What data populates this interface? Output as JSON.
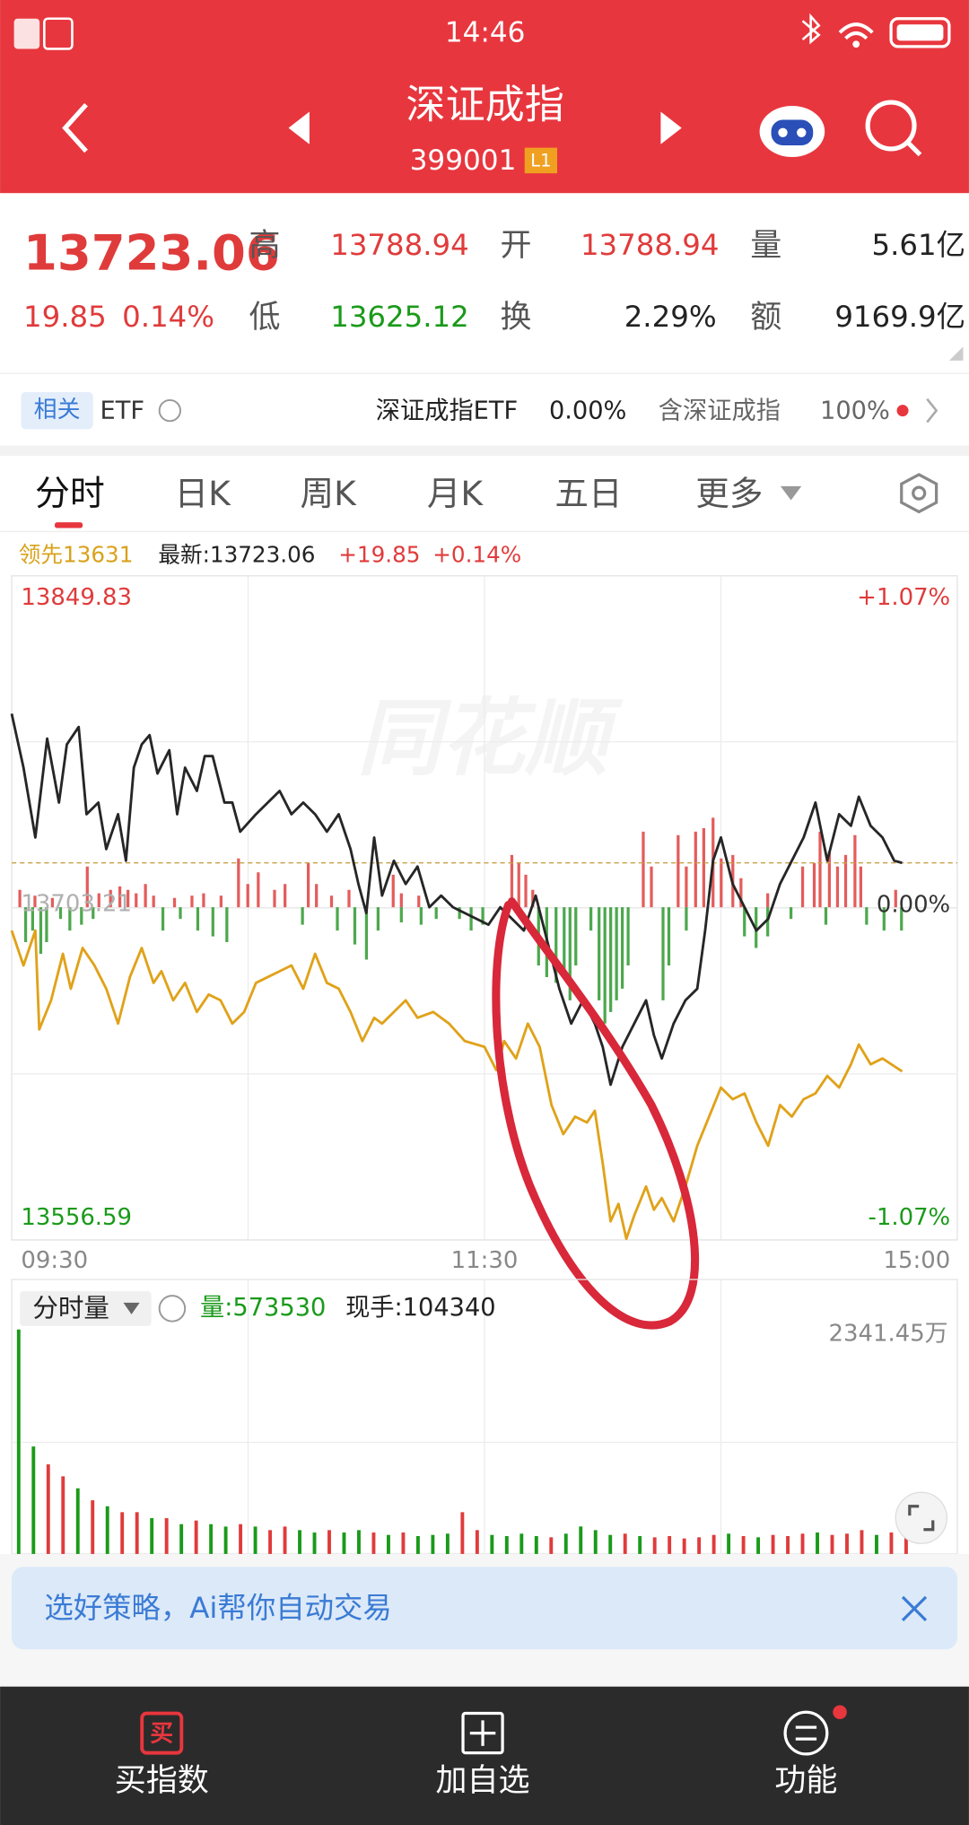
{
  "status": {
    "time": "14:46"
  },
  "nav": {
    "title": "深证成指",
    "code": "399001",
    "badge": "L1"
  },
  "quote": {
    "price": "13723.06",
    "change": "19.85",
    "pct": "0.14%",
    "high_label": "高",
    "high": "13788.94",
    "open_label": "开",
    "open": "13788.94",
    "volume_label": "量",
    "volume": "5.61亿",
    "low_label": "低",
    "low": "13625.12",
    "turnover_label": "换",
    "turnover": "2.29%",
    "amount_label": "额",
    "amount": "9169.9亿"
  },
  "related": {
    "tag": "相关",
    "etf": "ETF",
    "name": "深证成指ETF",
    "pct": "0.00%",
    "contain": "含深证成指",
    "contain_pct": "100%"
  },
  "tabs": [
    "分时",
    "日K",
    "周K",
    "月K",
    "五日",
    "更多"
  ],
  "info": {
    "lead": "领先13631",
    "latest": "最新:13723.06",
    "change": "+19.85",
    "pct": "+0.14%"
  },
  "chart_data": [
    {
      "type": "line",
      "watermark": "同花顺",
      "xlim": [
        0,
        240
      ],
      "xticks": [
        {
          "value": 0,
          "label": "09:30"
        },
        {
          "value": 120,
          "label": "11:30"
        },
        {
          "value": 240,
          "label": "15:00"
        }
      ],
      "xgrid": [
        60,
        120,
        180
      ],
      "ylim": [
        13556.59,
        13849.83
      ],
      "yticks": [
        13556.59,
        13703.21,
        13849.83
      ],
      "ytick_colors": [
        "#1a9a1a",
        "#b0b0b0",
        "#e03b3b"
      ],
      "ygrid": [
        13629.9,
        13776.52
      ],
      "y2lim": [
        -1.07,
        1.07
      ],
      "y2ticks": [
        {
          "value": -1.07,
          "label": "-1.07%"
        },
        {
          "value": 0,
          "label": "0.00%"
        },
        {
          "value": 1.07,
          "label": "+1.07%"
        }
      ],
      "y2tick_colors": [
        "#1a9a1a",
        "#333333",
        "#e03b3b"
      ],
      "grid": true,
      "last_price": 13723.06,
      "series": [
        {
          "color": "#262626",
          "x": [
            0,
            3,
            6,
            9,
            12,
            14,
            17,
            19,
            22,
            24,
            27,
            29,
            31,
            33,
            35,
            37,
            40,
            42,
            44,
            47,
            49,
            51,
            54,
            56,
            58,
            62,
            65,
            68,
            71,
            74,
            77,
            80,
            83,
            86,
            88,
            90,
            92,
            94,
            97,
            100,
            103,
            106,
            109,
            112,
            115,
            118,
            121,
            124,
            127,
            130,
            133,
            136,
            139,
            142,
            145,
            148,
            150,
            152,
            155,
            158,
            161,
            163,
            165,
            168,
            171,
            174,
            176,
            178,
            180,
            183,
            186,
            189,
            192,
            195,
            198,
            201,
            204,
            207,
            210,
            213,
            215,
            218,
            221,
            224,
            226
          ],
          "values": [
            13788.94,
            13765.1,
            13734.28,
            13777.94,
            13749.69,
            13775.37,
            13783.07,
            13744.55,
            13749.69,
            13729.15,
            13744.55,
            13724.01,
            13765.1,
            13775.37,
            13779.48,
            13762.53,
            13772.8,
            13744.55,
            13765.1,
            13754.83,
            13770.23,
            13770.23,
            13749.69,
            13749.69,
            13736.85,
            13744.55,
            13749.69,
            13754.83,
            13744.55,
            13749.69,
            13744.55,
            13736.85,
            13744.55,
            13729.15,
            13713.74,
            13700.9,
            13734.28,
            13708.6,
            13724.01,
            13713.74,
            13721.44,
            13703.47,
            13708.6,
            13703.47,
            13700.9,
            13698.33,
            13695.76,
            13703.47,
            13698.33,
            13693.19,
            13708.6,
            13688.06,
            13667.51,
            13652.11,
            13662.38,
            13652.11,
            13641.83,
            13625.12,
            13641.83,
            13652.11,
            13662.38,
            13646.97,
            13636.7,
            13652.11,
            13662.38,
            13667.51,
            13693.19,
            13724.01,
            13734.28,
            13713.74,
            13703.47,
            13693.19,
            13698.33,
            13713.74,
            13724.01,
            13734.28,
            13749.69,
            13724.01,
            13744.55,
            13739.42,
            13752.26,
            13739.42,
            13734.28,
            13724.01,
            13723.06
          ]
        },
        {
          "color": "#e0a21a",
          "x": [
            0,
            3,
            6,
            7,
            10,
            13,
            15,
            18,
            21,
            24,
            27,
            30,
            33,
            36,
            38,
            41,
            44,
            47,
            50,
            53,
            56,
            59,
            62,
            65,
            68,
            71,
            74,
            77,
            80,
            83,
            86,
            89,
            92,
            94,
            97,
            100,
            103,
            107,
            111,
            115,
            120,
            123,
            125,
            128,
            131,
            134,
            137,
            140,
            143,
            146,
            148,
            150,
            152,
            154,
            156,
            158,
            161,
            163,
            165,
            168,
            171,
            174,
            177,
            180,
            183,
            186,
            189,
            192,
            195,
            198,
            201,
            204,
            207,
            210,
            213,
            215,
            218,
            221,
            226
          ],
          "values": [
            13693.19,
            13677.79,
            13693.19,
            13649.54,
            13662.38,
            13682.92,
            13667.51,
            13685.49,
            13677.79,
            13667.51,
            13652.11,
            13672.65,
            13685.49,
            13670.08,
            13675.22,
            13662.38,
            13670.08,
            13657.24,
            13664.95,
            13662.38,
            13652.11,
            13657.24,
            13670.08,
            13672.65,
            13675.22,
            13677.79,
            13667.51,
            13682.92,
            13670.08,
            13667.51,
            13657.24,
            13644.4,
            13654.67,
            13652.11,
            13657.24,
            13662.38,
            13654.67,
            13657.24,
            13652.11,
            13644.4,
            13641.83,
            13631.56,
            13644.4,
            13636.7,
            13652.11,
            13641.83,
            13616.15,
            13603.31,
            13611.02,
            13608.45,
            13613.59,
            13590.48,
            13564.8,
            13572.5,
            13557.09,
            13567.36,
            13580.2,
            13569.93,
            13575.07,
            13564.8,
            13580.2,
            13598.18,
            13611.02,
            13623.86,
            13618.72,
            13621.29,
            13608.45,
            13598.18,
            13616.15,
            13611.02,
            13618.72,
            13621.29,
            13628.99,
            13623.86,
            13634.13,
            13642.86,
            13634.13,
            13636.7,
            13631
          ]
        }
      ]
    },
    {
      "type": "bar",
      "title": "分时量",
      "volume_label": "量:573530",
      "hand_label": "现手:104340",
      "xlim": [
        0,
        240
      ],
      "xgrid": [
        60,
        120,
        180
      ],
      "ylim": [
        0,
        2341.45
      ],
      "yticks": [
        {
          "value": 2341.45,
          "label": "2341.45万"
        }
      ],
      "ygrid": [
        1164.6
      ],
      "x": [
        0,
        4,
        8,
        12,
        16,
        20,
        24,
        28,
        32,
        36,
        40,
        44,
        48,
        52,
        56,
        60,
        64,
        68,
        72,
        76,
        80,
        84,
        88,
        92,
        96,
        100,
        104,
        108,
        112,
        116,
        120,
        124,
        128,
        132,
        136,
        140,
        144,
        148,
        152,
        156,
        160,
        164,
        168,
        172,
        176,
        180,
        184,
        188,
        192,
        196,
        200,
        204,
        208,
        212,
        216,
        220,
        224,
        228,
        232,
        236,
        240
      ],
      "values": [
        2341.45,
        1121,
        935,
        810,
        685,
        560,
        498,
        436,
        436,
        374,
        374,
        311,
        349,
        311,
        286,
        311,
        286,
        249,
        286,
        249,
        224,
        249,
        224,
        249,
        224,
        199,
        224,
        187,
        199,
        212,
        436,
        249,
        199,
        187,
        212,
        187,
        174,
        212,
        287,
        249,
        199,
        212,
        187,
        174,
        187,
        162,
        174,
        199,
        212,
        187,
        174,
        199,
        187,
        212,
        224,
        199,
        212,
        249,
        199,
        224,
        187
      ],
      "colors": [
        "#1a9a1a",
        "#1a9a1a",
        "#e03b3b",
        "#e03b3b",
        "#1a9a1a",
        "#e03b3b",
        "#1a9a1a",
        "#e03b3b",
        "#e03b3b",
        "#1a9a1a",
        "#e03b3b",
        "#1a9a1a",
        "#e03b3b",
        "#1a9a1a",
        "#1a9a1a",
        "#e03b3b",
        "#1a9a1a",
        "#e03b3b",
        "#e03b3b",
        "#1a9a1a",
        "#1a9a1a",
        "#e03b3b",
        "#1a9a1a",
        "#1a9a1a",
        "#e03b3b",
        "#1a9a1a",
        "#e03b3b",
        "#1a9a1a",
        "#1a9a1a",
        "#1a9a1a",
        "#e03b3b",
        "#e03b3b",
        "#1a9a1a",
        "#1a9a1a",
        "#1a9a1a",
        "#1a9a1a",
        "#e03b3b",
        "#1a9a1a",
        "#1a9a1a",
        "#1a9a1a",
        "#1a9a1a",
        "#e03b3b",
        "#1a9a1a",
        "#e03b3b",
        "#e03b3b",
        "#e03b3b",
        "#e03b3b",
        "#e03b3b",
        "#1a9a1a",
        "#e03b3b",
        "#1a9a1a",
        "#e03b3b",
        "#e03b3b",
        "#e03b3b",
        "#1a9a1a",
        "#e03b3b",
        "#e03b3b",
        "#e03b3b",
        "#1a9a1a",
        "#e03b3b",
        "#e03b3b"
      ]
    }
  ],
  "banner": {
    "text": "选好策略，Ai帮你自动交易"
  },
  "bottom": {
    "buy_icon": "买",
    "items": [
      "买指数",
      "加自选",
      "功能"
    ]
  }
}
